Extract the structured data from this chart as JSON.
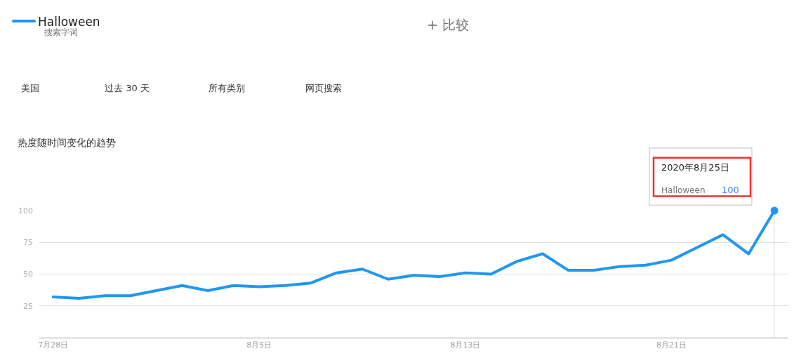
{
  "chart_data": {
    "type": "line",
    "title": "热度随时间变化的趋势",
    "x": [
      "2020-07-28",
      "2020-07-29",
      "2020-07-30",
      "2020-07-31",
      "2020-08-01",
      "2020-08-02",
      "2020-08-03",
      "2020-08-04",
      "2020-08-05",
      "2020-08-06",
      "2020-08-07",
      "2020-08-08",
      "2020-08-09",
      "2020-08-10",
      "2020-08-11",
      "2020-08-12",
      "2020-08-13",
      "2020-08-14",
      "2020-08-15",
      "2020-08-16",
      "2020-08-17",
      "2020-08-18",
      "2020-08-19",
      "2020-08-20",
      "2020-08-21",
      "2020-08-22",
      "2020-08-23",
      "2020-08-24",
      "2020-08-25"
    ],
    "series": [
      {
        "name": "Halloween",
        "color": "#2196f3",
        "values": [
          32,
          31,
          33,
          33,
          37,
          41,
          37,
          41,
          40,
          41,
          43,
          51,
          54,
          46,
          49,
          48,
          51,
          50,
          60,
          66,
          53,
          53,
          56,
          57,
          61,
          71,
          81,
          66,
          100
        ]
      },
      {
        "type": "scatter",
        "x": [
          "2020-08-25"
        ],
        "color": "#2196f3",
        "marker": "circle",
        "values": [
          100
        ]
      }
    ],
    "xlim": [
      "2020-07-27T11:00",
      "2020-08-25T13:00"
    ],
    "xticks": [
      {
        "value": "2020-07-28",
        "label": "7月28日"
      },
      {
        "value": "2020-08-05",
        "label": "8月5日"
      },
      {
        "value": "2020-08-13",
        "label": "8月13日"
      },
      {
        "value": "2020-08-21",
        "label": "8月21日"
      }
    ],
    "ylim": [
      0,
      100
    ],
    "yticks": [
      25,
      50,
      75,
      100
    ],
    "grid": "y",
    "legend": "top left",
    "ref_lines": [
      {
        "axis": "x",
        "value": "2020-08-25",
        "color": "#eeeeee"
      }
    ],
    "annotations": [
      "搜索字词",
      "+ 比较",
      "美国",
      "过去 30 天",
      "所有类别",
      "网页搜索",
      "2020年8月25日",
      "Halloween",
      "100"
    ]
  }
}
